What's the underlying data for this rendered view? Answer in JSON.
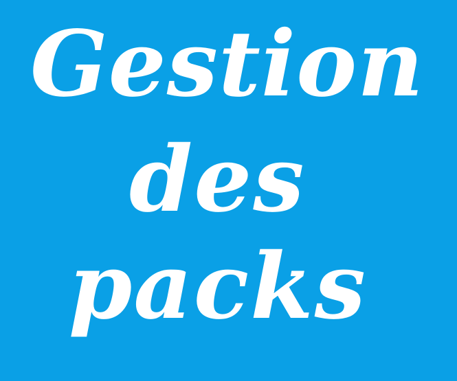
{
  "background_color": "#0aa0e6",
  "text_color": "#ffffff",
  "title": {
    "line1": "Gestion",
    "line2": "des",
    "line3": "packs"
  }
}
